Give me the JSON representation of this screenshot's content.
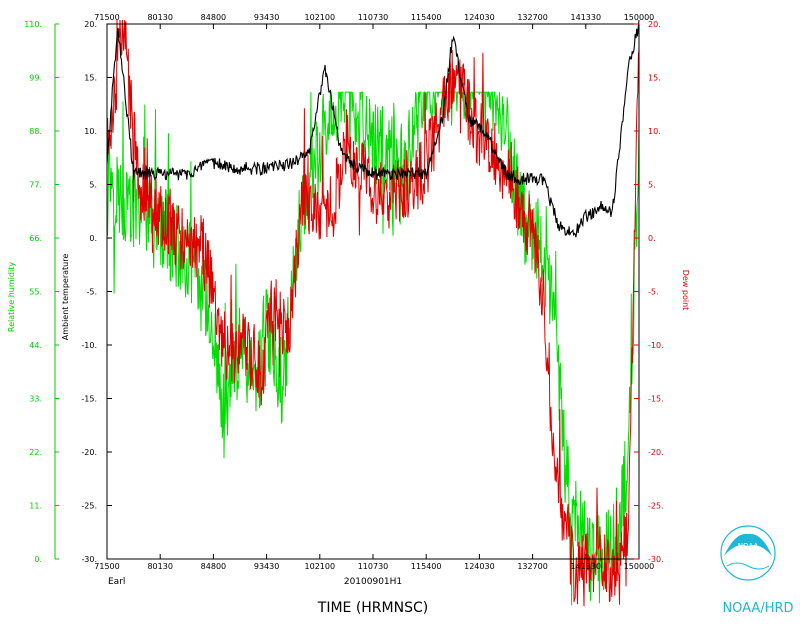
{
  "chart_data": {
    "type": "line",
    "xlabel": "TIME (HRMNSC)",
    "storm": "Earl",
    "flight_id": "20100901H1",
    "x_ticks": [
      "71500",
      "80130",
      "84800",
      "93430",
      "102100",
      "110730",
      "115400",
      "124030",
      "132700",
      "141330",
      "150000"
    ],
    "ylim_temperature": [
      -30,
      20
    ],
    "ylim_dewpoint": [
      -30,
      20
    ],
    "ylim_humidity": [
      0,
      110
    ],
    "y_ticks_temperature": [
      "20.",
      "15.",
      "10.",
      "5.",
      "0.",
      "-5.",
      "-10.",
      "-15.",
      "-20.",
      "-25.",
      "-30."
    ],
    "y_ticks_humidity": [
      "110.",
      "99.",
      "88.",
      "77.",
      "66.",
      "55.",
      "44.",
      "33.",
      "22.",
      "11.",
      "0."
    ],
    "y_ticks_dewpoint": [
      "20.",
      "15.",
      "10.",
      "5.",
      "0.",
      "-5.",
      "-10.",
      "-15.",
      "-20.",
      "-25.",
      "-30."
    ],
    "ylabel_left_outer": "Relative humidity",
    "ylabel_left_inner": "Ambient temperature",
    "ylabel_right": "Dew point",
    "series": [
      {
        "name": "Ambient temperature",
        "color": "#000000",
        "axis": "temperature",
        "t": [
          0.0,
          0.02,
          0.05,
          0.1,
          0.15,
          0.2,
          0.25,
          0.3,
          0.35,
          0.38,
          0.41,
          0.44,
          0.47,
          0.5,
          0.53,
          0.57,
          0.6,
          0.63,
          0.65,
          0.68,
          0.71,
          0.75,
          0.78,
          0.8,
          0.82,
          0.85,
          0.88,
          0.9,
          0.93,
          0.95,
          0.98,
          1.0
        ],
        "y": [
          7,
          20,
          6,
          6,
          6,
          7,
          6.5,
          6.5,
          7,
          8,
          16,
          8,
          6.5,
          6,
          6,
          6,
          6,
          11,
          19,
          11,
          10,
          6,
          5.5,
          5.5,
          5.5,
          1,
          0.5,
          2,
          3,
          2.5,
          16,
          20
        ]
      },
      {
        "name": "Dew point",
        "color": "#e00000",
        "axis": "dewpoint",
        "t": [
          0.0,
          0.03,
          0.06,
          0.1,
          0.14,
          0.18,
          0.21,
          0.23,
          0.26,
          0.29,
          0.31,
          0.34,
          0.37,
          0.4,
          0.42,
          0.45,
          0.48,
          0.51,
          0.54,
          0.57,
          0.6,
          0.63,
          0.66,
          0.69,
          0.72,
          0.75,
          0.78,
          0.8,
          0.82,
          0.84,
          0.86,
          0.88,
          0.9,
          0.93,
          0.96,
          0.98,
          1.0
        ],
        "y": [
          8,
          20,
          5,
          2,
          0,
          -1,
          -8,
          -11,
          -10,
          -13,
          -6,
          -9,
          4,
          3,
          2,
          9,
          6,
          4,
          5,
          4,
          7,
          12,
          16,
          10,
          9,
          6,
          3,
          0,
          -5,
          -20,
          -26,
          -32,
          -30,
          -30,
          -32,
          -27,
          19
        ]
      },
      {
        "name": "Relative humidity",
        "color": "#00dd00",
        "axis": "humidity",
        "t": [
          0.0,
          0.02,
          0.05,
          0.08,
          0.12,
          0.16,
          0.2,
          0.22,
          0.25,
          0.28,
          0.3,
          0.33,
          0.36,
          0.39,
          0.42,
          0.45,
          0.48,
          0.52,
          0.56,
          0.6,
          0.64,
          0.68,
          0.72,
          0.75,
          0.78,
          0.81,
          0.84,
          0.86,
          0.88,
          0.91,
          0.94,
          0.96,
          0.98,
          1.0
        ],
        "y": [
          82,
          75,
          72,
          70,
          66,
          60,
          48,
          28,
          44,
          35,
          48,
          36,
          68,
          80,
          92,
          99,
          88,
          84,
          80,
          99,
          99,
          99,
          99,
          88,
          70,
          66,
          50,
          20,
          8,
          2,
          2,
          4,
          20,
          88
        ]
      }
    ]
  },
  "logo": {
    "text": "NOAA/HRD",
    "emblem": "NOAA"
  }
}
